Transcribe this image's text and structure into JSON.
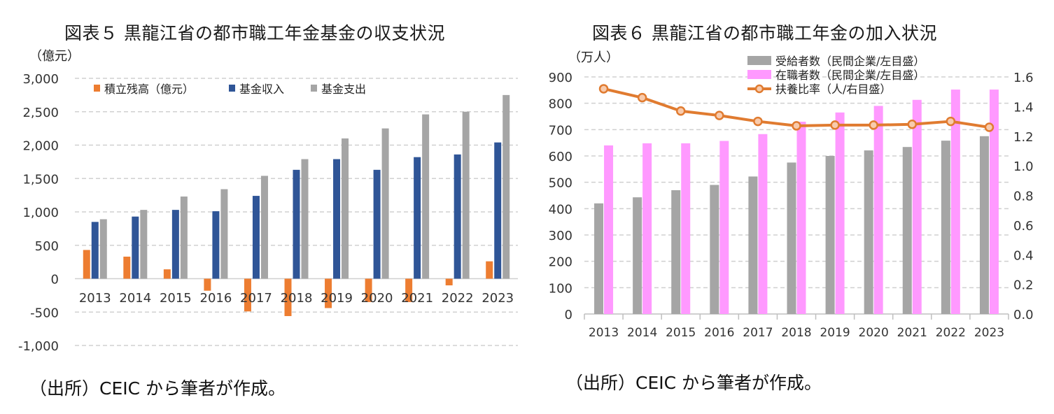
{
  "chart_data": [
    {
      "type": "bar",
      "title": "図表５ 黒龍江省の都市職工年金基金の収支状況",
      "unit_label": "（億元）",
      "source": "（出所）CEIC から筆者が作成。",
      "categories": [
        "2013",
        "2014",
        "2015",
        "2016",
        "2017",
        "2018",
        "2019",
        "2020",
        "2021",
        "2022",
        "2023"
      ],
      "ylim": [
        -1000,
        3000
      ],
      "yticks": [
        -1000,
        -500,
        0,
        500,
        1000,
        1500,
        2000,
        2500,
        3000
      ],
      "ytick_labels": [
        "-1,000",
        "-500",
        "0",
        "500",
        "1,000",
        "1,500",
        "2,000",
        "2,500",
        "3,000"
      ],
      "grid": true,
      "legend_position": "top-left",
      "series": [
        {
          "name": "積立残高（億元）",
          "color": "#ED7D31",
          "values": [
            430,
            330,
            140,
            -180,
            -490,
            -560,
            -440,
            -350,
            -350,
            -100,
            260
          ]
        },
        {
          "name": "基金収入",
          "color": "#2F5597",
          "values": [
            850,
            930,
            1030,
            1010,
            1240,
            1630,
            1790,
            1630,
            1820,
            1860,
            2040
          ]
        },
        {
          "name": "基金支出",
          "color": "#A5A5A5",
          "values": [
            890,
            1030,
            1230,
            1340,
            1540,
            1790,
            2100,
            2250,
            2460,
            2500,
            2750
          ]
        }
      ]
    },
    {
      "type": "bar",
      "title": "図表６ 黒龍江省の都市職工年金の加入状況",
      "unit_label": "（万人）",
      "source": "（出所）CEIC から筆者が作成。",
      "categories": [
        "2013",
        "2014",
        "2015",
        "2016",
        "2017",
        "2018",
        "2019",
        "2020",
        "2021",
        "2022",
        "2023"
      ],
      "ylim": [
        0,
        900
      ],
      "yticks": [
        0,
        100,
        200,
        300,
        400,
        500,
        600,
        700,
        800,
        900
      ],
      "ytick_labels": [
        "0",
        "100",
        "200",
        "300",
        "400",
        "500",
        "600",
        "700",
        "800",
        "900"
      ],
      "y2lim": [
        0,
        1.6
      ],
      "y2ticks": [
        0,
        0.2,
        0.4,
        0.6,
        0.8,
        1.0,
        1.2,
        1.4,
        1.6
      ],
      "y2tick_labels": [
        "0.0",
        "0.2",
        "0.4",
        "0.6",
        "0.8",
        "1.0",
        "1.2",
        "1.4",
        "1.6"
      ],
      "grid": true,
      "legend_position": "top-center",
      "series": [
        {
          "name": "受給者数（民間企業/左目盛）",
          "color": "#A5A5A5",
          "kind": "bar",
          "axis": "left",
          "values": [
            420,
            443,
            470,
            490,
            522,
            575,
            600,
            621,
            634,
            658,
            675
          ]
        },
        {
          "name": "在職者数（民間企業/左目盛）",
          "color": "#FF99FF",
          "kind": "bar",
          "axis": "left",
          "values": [
            640,
            648,
            648,
            657,
            683,
            730,
            765,
            790,
            813,
            852,
            852
          ]
        },
        {
          "name": "扶養比率（人/右目盛）",
          "color": "#E07B30",
          "marker_fill": "#F8CBAD",
          "kind": "line",
          "axis": "right",
          "values": [
            1.52,
            1.46,
            1.37,
            1.34,
            1.3,
            1.27,
            1.275,
            1.275,
            1.28,
            1.3,
            1.26
          ]
        }
      ]
    }
  ]
}
